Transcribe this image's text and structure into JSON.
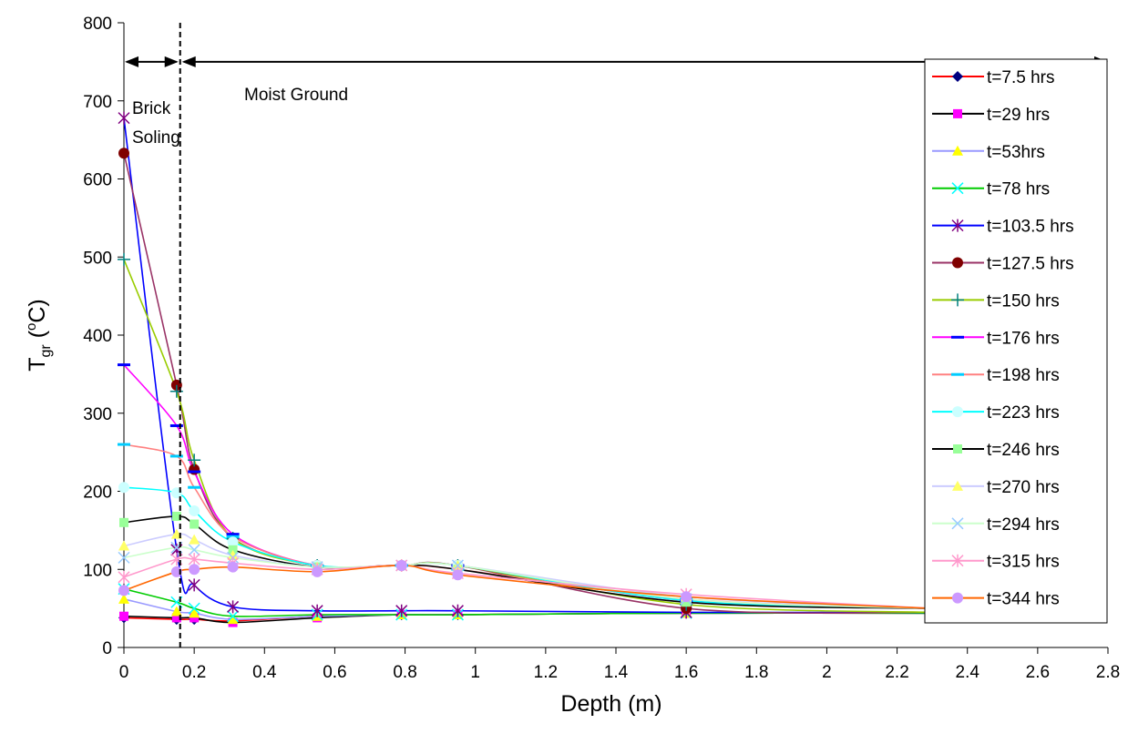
{
  "chart_data": {
    "type": "line",
    "title": "",
    "xlabel": "Depth (m)",
    "ylabel": {
      "main": "T",
      "sub": "gr",
      "unit_open": " (",
      "unit_sup": "o",
      "unit_close": "C)"
    },
    "xlim": [
      0,
      2.8
    ],
    "ylim": [
      0,
      800
    ],
    "x_ticks": [
      "0",
      "0.2",
      "0.4",
      "0.6",
      "0.8",
      "1",
      "1.2",
      "1.4",
      "1.6",
      "1.8",
      "2",
      "2.2",
      "2.4",
      "2.6",
      "2.8"
    ],
    "y_ticks": [
      "0",
      "100",
      "200",
      "300",
      "400",
      "500",
      "600",
      "700",
      "800"
    ],
    "grid": false,
    "legend_position": "right",
    "annotations": {
      "region1_line1": "Brick",
      "region1_line2": "Soling",
      "region2": "Moist Ground",
      "boundary_depth": 0.16,
      "arrow_level": 750
    },
    "x": [
      0,
      0.15,
      0.2,
      0.31,
      0.55,
      0.79,
      0.95,
      1.6,
      2.3
    ],
    "series": [
      {
        "name": "t=7.5 hrs",
        "color": "#ff0000",
        "marker": "diamond",
        "marker_color": "#000080",
        "values": [
          38,
          36,
          36,
          34,
          40,
          42,
          42,
          44,
          44
        ]
      },
      {
        "name": "t=29 hrs",
        "color": "#000000",
        "marker": "square",
        "marker_color": "#ff00ff",
        "values": [
          40,
          38,
          38,
          32,
          38,
          42,
          42,
          44,
          44
        ]
      },
      {
        "name": "t=53hrs",
        "color": "#9999ff",
        "marker": "triangle",
        "marker_color": "#ffff00",
        "values": [
          62,
          46,
          44,
          36,
          40,
          42,
          42,
          44,
          44
        ]
      },
      {
        "name": "t=78 hrs",
        "color": "#00cc00",
        "marker": "x",
        "marker_color": "#00ffff",
        "values": [
          75,
          58,
          50,
          40,
          42,
          42,
          42,
          44,
          44
        ]
      },
      {
        "name": "t=103.5 hrs",
        "color": "#0000ff",
        "marker": "asterisk",
        "marker_color": "#800080",
        "values": [
          678,
          125,
          80,
          52,
          47,
          47,
          47,
          45,
          45
        ]
      },
      {
        "name": "t=127.5 hrs",
        "color": "#993366",
        "marker": "circle",
        "marker_color": "#800000",
        "values": [
          633,
          336,
          228,
          140,
          105,
          105,
          105,
          50,
          45
        ]
      },
      {
        "name": "t=150 hrs",
        "color": "#99cc00",
        "marker": "plus",
        "marker_color": "#008080",
        "values": [
          497,
          328,
          240,
          140,
          105,
          105,
          105,
          55,
          45
        ]
      },
      {
        "name": "t=176 hrs",
        "color": "#ff00ff",
        "marker": "dash",
        "marker_color": "#0000ff",
        "values": [
          362,
          284,
          225,
          145,
          105,
          105,
          105,
          60,
          50
        ]
      },
      {
        "name": "t=198 hrs",
        "color": "#ff8080",
        "marker": "dash",
        "marker_color": "#00ccff",
        "values": [
          260,
          245,
          205,
          142,
          105,
          105,
          100,
          62,
          50
        ]
      },
      {
        "name": "t=223 hrs",
        "color": "#00ffff",
        "marker": "circle",
        "marker_color": "#ccffff",
        "values": [
          205,
          198,
          175,
          135,
          105,
          105,
          105,
          60,
          50
        ]
      },
      {
        "name": "t=246 hrs",
        "color": "#000000",
        "marker": "square",
        "marker_color": "#99ff99",
        "values": [
          160,
          168,
          158,
          125,
          103,
          105,
          100,
          58,
          50
        ]
      },
      {
        "name": "t=270 hrs",
        "color": "#ccccff",
        "marker": "triangle",
        "marker_color": "#ffff66",
        "values": [
          130,
          145,
          138,
          118,
          103,
          105,
          105,
          65,
          50
        ]
      },
      {
        "name": "t=294 hrs",
        "color": "#ccffcc",
        "marker": "x",
        "marker_color": "#99ccff",
        "values": [
          115,
          128,
          125,
          115,
          103,
          105,
          105,
          62,
          50
        ]
      },
      {
        "name": "t=315 hrs",
        "color": "#ff99cc",
        "marker": "asterisk",
        "marker_color": "#ff99cc",
        "values": [
          90,
          113,
          113,
          108,
          100,
          105,
          95,
          68,
          50
        ]
      },
      {
        "name": "t=344 hrs",
        "color": "#ff6600",
        "marker": "circle",
        "marker_color": "#cc99ff",
        "values": [
          73,
          97,
          100,
          103,
          97,
          105,
          93,
          65,
          50
        ]
      }
    ]
  }
}
